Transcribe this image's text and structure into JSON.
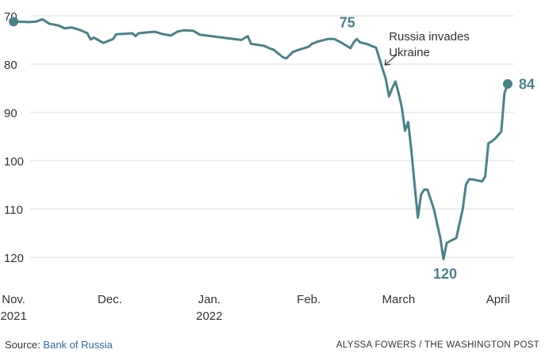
{
  "chart_data": {
    "type": "line",
    "y_inverted": true,
    "ylim": [
      70,
      122
    ],
    "y_ticks": [
      70,
      80,
      90,
      100,
      110,
      120
    ],
    "x_range": [
      "2021-10-29",
      "2022-04-06"
    ],
    "x_ticks": [
      {
        "date": "2021-11-01",
        "line1": "Nov.",
        "line2": "2021"
      },
      {
        "date": "2021-12-01",
        "line1": "Dec.",
        "line2": ""
      },
      {
        "date": "2022-01-01",
        "line1": "Jan.",
        "line2": "2022"
      },
      {
        "date": "2022-02-01",
        "line1": "Feb.",
        "line2": ""
      },
      {
        "date": "2022-03-01",
        "line1": "March",
        "line2": ""
      },
      {
        "date": "2022-04-01",
        "line1": "April",
        "line2": ""
      }
    ],
    "series": [
      {
        "color": "#4a8288",
        "points": [
          [
            "2021-11-01",
            71.2
          ],
          [
            "2021-11-06",
            71.3
          ],
          [
            "2021-11-08",
            71.2
          ],
          [
            "2021-11-10",
            70.7
          ],
          [
            "2021-11-12",
            71.6
          ],
          [
            "2021-11-15",
            72.0
          ],
          [
            "2021-11-17",
            72.6
          ],
          [
            "2021-11-19",
            72.4
          ],
          [
            "2021-11-22",
            73.0
          ],
          [
            "2021-11-24",
            73.6
          ],
          [
            "2021-11-25",
            74.9
          ],
          [
            "2021-11-26",
            74.5
          ],
          [
            "2021-11-29",
            75.6
          ],
          [
            "2021-12-02",
            74.8
          ],
          [
            "2021-12-03",
            73.8
          ],
          [
            "2021-12-06",
            73.7
          ],
          [
            "2021-12-08",
            73.6
          ],
          [
            "2021-12-09",
            74.2
          ],
          [
            "2021-12-10",
            73.6
          ],
          [
            "2021-12-13",
            73.4
          ],
          [
            "2021-12-15",
            73.3
          ],
          [
            "2021-12-17",
            73.7
          ],
          [
            "2021-12-20",
            74.1
          ],
          [
            "2021-12-22",
            73.3
          ],
          [
            "2021-12-24",
            73.0
          ],
          [
            "2021-12-27",
            73.1
          ],
          [
            "2021-12-29",
            73.9
          ],
          [
            "2022-01-11",
            75.0
          ],
          [
            "2022-01-13",
            74.2
          ],
          [
            "2022-01-14",
            75.8
          ],
          [
            "2022-01-18",
            76.2
          ],
          [
            "2022-01-20",
            76.8
          ],
          [
            "2022-01-21",
            77.0
          ],
          [
            "2022-01-24",
            78.6
          ],
          [
            "2022-01-25",
            78.8
          ],
          [
            "2022-01-27",
            77.5
          ],
          [
            "2022-01-29",
            77.0
          ],
          [
            "2022-02-01",
            76.4
          ],
          [
            "2022-02-02",
            75.8
          ],
          [
            "2022-02-04",
            75.3
          ],
          [
            "2022-02-07",
            74.8
          ],
          [
            "2022-02-09",
            74.8
          ],
          [
            "2022-02-11",
            75.5
          ],
          [
            "2022-02-14",
            76.7
          ],
          [
            "2022-02-15",
            75.5
          ],
          [
            "2022-02-16",
            74.8
          ],
          [
            "2022-02-17",
            75.5
          ],
          [
            "2022-02-19",
            75.8
          ],
          [
            "2022-02-22",
            76.6
          ],
          [
            "2022-02-24",
            81.0
          ],
          [
            "2022-02-25",
            83.0
          ],
          [
            "2022-02-26",
            86.7
          ],
          [
            "2022-02-27",
            85.0
          ],
          [
            "2022-02-28",
            83.6
          ],
          [
            "2022-03-01",
            86.0
          ],
          [
            "2022-03-02",
            89.0
          ],
          [
            "2022-03-03",
            93.8
          ],
          [
            "2022-03-04",
            92.0
          ],
          [
            "2022-03-05",
            98.0
          ],
          [
            "2022-03-06",
            105.0
          ],
          [
            "2022-03-07",
            111.8
          ],
          [
            "2022-03-08",
            107.0
          ],
          [
            "2022-03-09",
            106.0
          ],
          [
            "2022-03-10",
            106.0
          ],
          [
            "2022-03-12",
            110.0
          ],
          [
            "2022-03-14",
            116.0
          ],
          [
            "2022-03-15",
            120.4
          ],
          [
            "2022-03-16",
            117.0
          ],
          [
            "2022-03-19",
            116.0
          ],
          [
            "2022-03-21",
            110.0
          ],
          [
            "2022-03-22",
            105.0
          ],
          [
            "2022-03-23",
            103.8
          ],
          [
            "2022-03-25",
            104.0
          ],
          [
            "2022-03-27",
            104.3
          ],
          [
            "2022-03-28",
            103.3
          ],
          [
            "2022-03-29",
            96.4
          ],
          [
            "2022-03-30",
            96.0
          ],
          [
            "2022-03-31",
            95.5
          ],
          [
            "2022-04-02",
            94.0
          ],
          [
            "2022-04-03",
            86.0
          ],
          [
            "2022-04-04",
            84.1
          ]
        ],
        "marked_points": [
          "2021-11-01",
          "2022-04-04"
        ]
      }
    ],
    "data_labels": [
      {
        "date": "2022-02-13",
        "value": 75,
        "text": "75"
      },
      {
        "date": "2022-03-15",
        "value": 120,
        "text": "120"
      },
      {
        "date": "2022-04-04",
        "value": 84,
        "text": "84"
      }
    ],
    "annotations": [
      {
        "lines": [
          "Russia invades",
          "Ukraine"
        ],
        "target_date": "2022-02-24",
        "target_value": 82.0
      }
    ],
    "grid": true,
    "legend": "none"
  },
  "source": {
    "prefix": "Source: ",
    "name": "Bank of Russia"
  },
  "credit": "ALYSSA FOWERS / THE WASHINGTON POST"
}
